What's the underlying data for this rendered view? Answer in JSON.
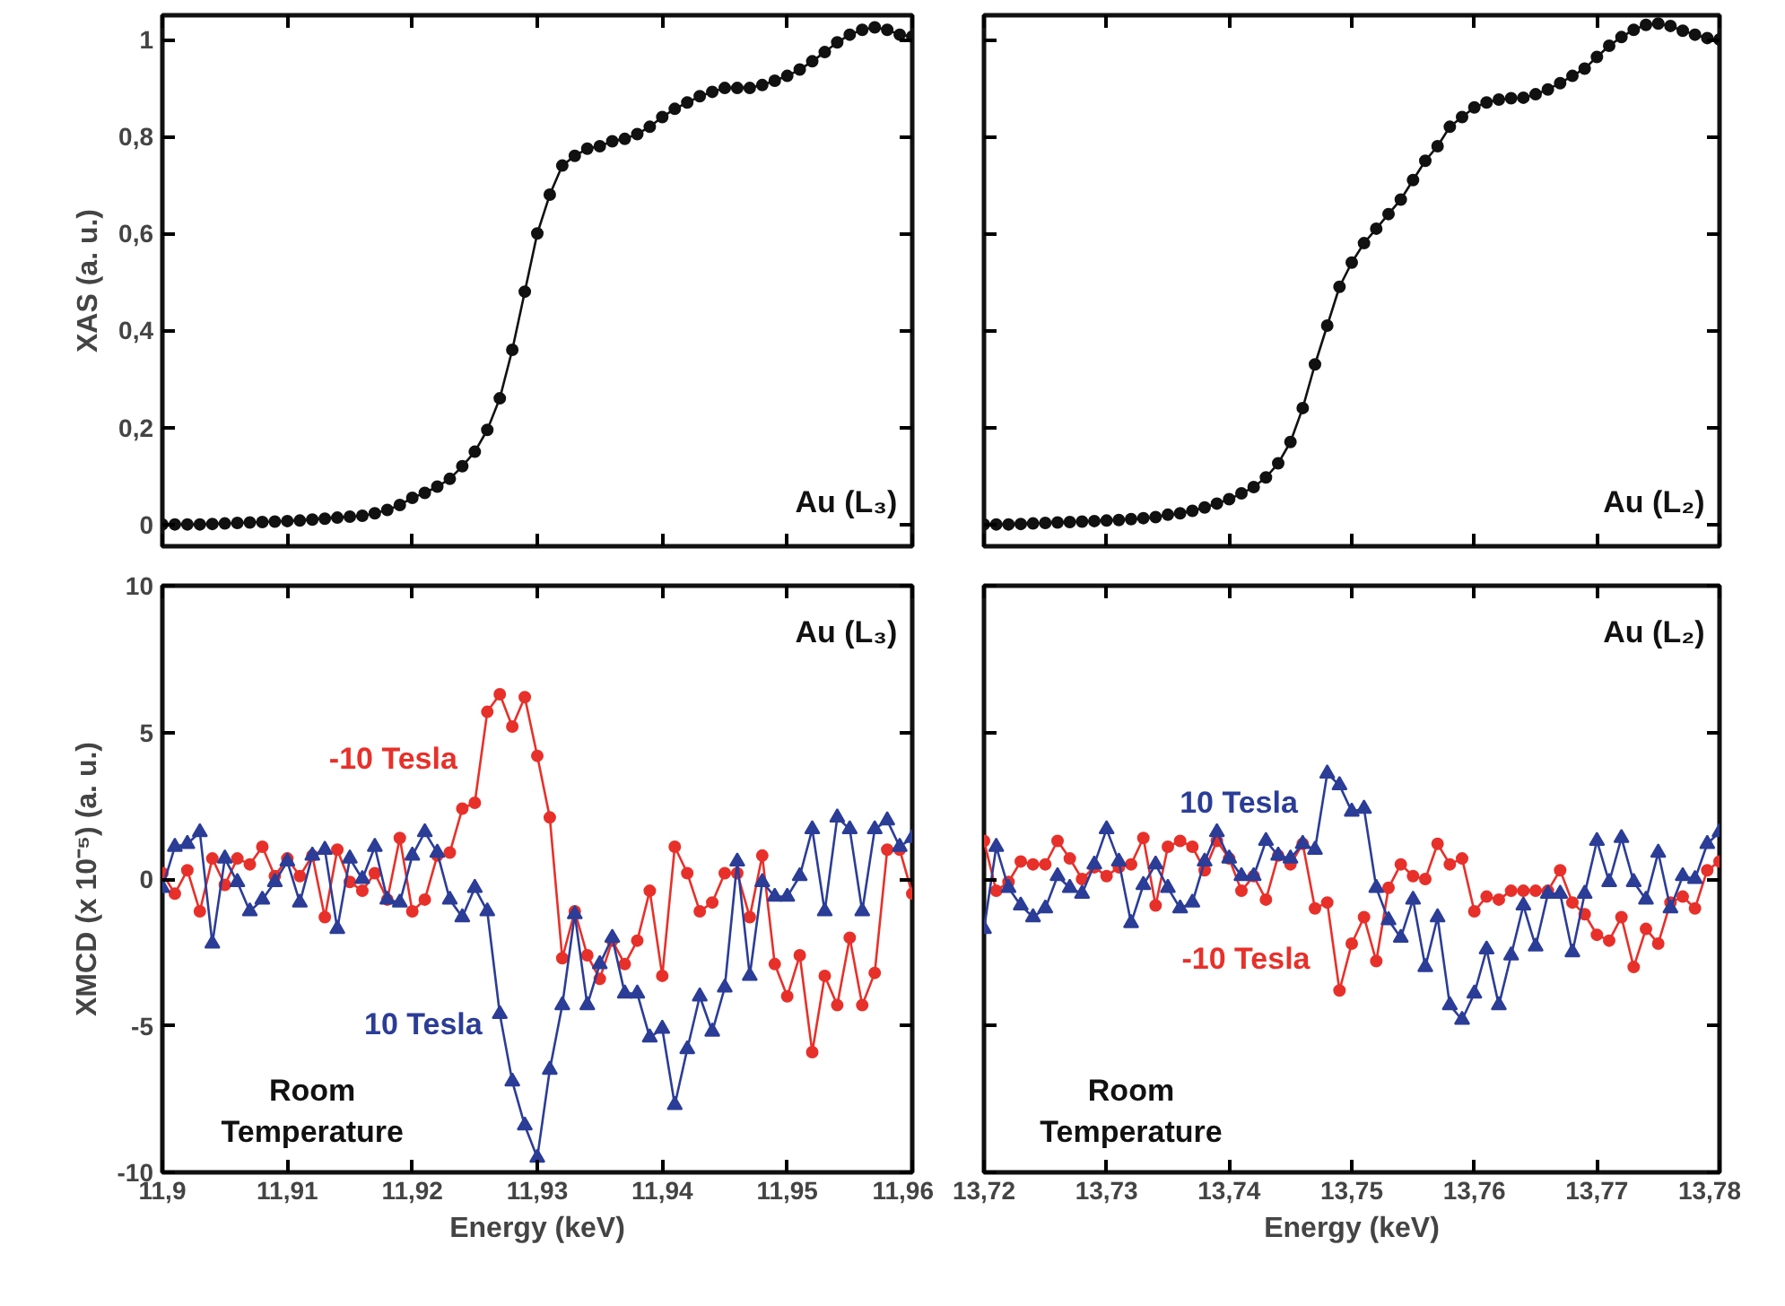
{
  "chart_data": [
    {
      "type": "line",
      "ylabel": "XAS (a. u.)",
      "annotations": [
        "Au (L₃)"
      ],
      "xlim": [
        11.9,
        11.96
      ],
      "ylim": [
        -0.045,
        1.05
      ],
      "tick_labels": "y",
      "grid": false,
      "marker": "circle",
      "line_style": "solid",
      "xticks": [
        11.9,
        11.91,
        11.92,
        11.93,
        11.94,
        11.95,
        11.96
      ],
      "yticks": [
        0,
        {
          "value": 0.2,
          "label": "0,2"
        },
        {
          "value": 0.4,
          "label": "0,4"
        },
        {
          "value": 0.6,
          "label": "0,6"
        },
        {
          "value": 0.8,
          "label": "0,8"
        },
        1
      ],
      "x": [
        11.9,
        11.901,
        11.902,
        11.903,
        11.904,
        11.905,
        11.906,
        11.907,
        11.908,
        11.909,
        11.91,
        11.911,
        11.912,
        11.913,
        11.914,
        11.915,
        11.916,
        11.917,
        11.918,
        11.919,
        11.92,
        11.921,
        11.922,
        11.923,
        11.924,
        11.925,
        11.926,
        11.927,
        11.928,
        11.929,
        11.93,
        11.931,
        11.932,
        11.933,
        11.934,
        11.935,
        11.936,
        11.937,
        11.938,
        11.939,
        11.94,
        11.941,
        11.942,
        11.943,
        11.944,
        11.945,
        11.946,
        11.947,
        11.948,
        11.949,
        11.95,
        11.951,
        11.952,
        11.953,
        11.954,
        11.955,
        11.956,
        11.957,
        11.958,
        11.959,
        11.96
      ],
      "series": [
        {
          "color": "#111111",
          "values": [
            0,
            0,
            0,
            0,
            0.001,
            0.002,
            0.003,
            0.004,
            0.005,
            0.006,
            0.007,
            0.008,
            0.01,
            0.012,
            0.014,
            0.016,
            0.018,
            0.023,
            0.03,
            0.04,
            0.055,
            0.065,
            0.078,
            0.094,
            0.12,
            0.15,
            0.195,
            0.26,
            0.36,
            0.48,
            0.6,
            0.68,
            0.74,
            0.76,
            0.775,
            0.78,
            0.79,
            0.795,
            0.805,
            0.82,
            0.84,
            0.857,
            0.87,
            0.883,
            0.892,
            0.9,
            0.9,
            0.9,
            0.906,
            0.915,
            0.925,
            0.938,
            0.955,
            0.974,
            0.994,
            1.01,
            1.02,
            1.025,
            1.02,
            1.01,
            1.006
          ]
        }
      ]
    },
    {
      "type": "line",
      "annotations": [
        "Au (L₂)"
      ],
      "xlim": [
        13.72,
        13.78
      ],
      "ylim": [
        -0.045,
        1.05
      ],
      "tick_labels": false,
      "grid": false,
      "marker": "circle",
      "line_style": "solid",
      "xticks": [
        13.72,
        13.73,
        13.74,
        13.75,
        13.76,
        13.77,
        13.78
      ],
      "yticks": [
        0,
        0.2,
        0.4,
        0.6,
        0.8,
        1
      ],
      "x": [
        13.72,
        13.721,
        13.722,
        13.723,
        13.724,
        13.725,
        13.726,
        13.727,
        13.728,
        13.729,
        13.73,
        13.731,
        13.732,
        13.733,
        13.734,
        13.735,
        13.736,
        13.737,
        13.738,
        13.739,
        13.74,
        13.741,
        13.742,
        13.743,
        13.744,
        13.745,
        13.746,
        13.747,
        13.748,
        13.749,
        13.75,
        13.751,
        13.752,
        13.753,
        13.754,
        13.755,
        13.756,
        13.757,
        13.758,
        13.759,
        13.76,
        13.761,
        13.762,
        13.763,
        13.764,
        13.765,
        13.766,
        13.767,
        13.768,
        13.769,
        13.77,
        13.771,
        13.772,
        13.773,
        13.774,
        13.775,
        13.776,
        13.777,
        13.778,
        13.779,
        13.78
      ],
      "series": [
        {
          "color": "#111111",
          "values": [
            0,
            0,
            0,
            0.001,
            0.002,
            0.003,
            0.004,
            0.005,
            0.006,
            0.007,
            0.008,
            0.009,
            0.011,
            0.013,
            0.015,
            0.02,
            0.023,
            0.028,
            0.035,
            0.043,
            0.052,
            0.064,
            0.077,
            0.097,
            0.126,
            0.17,
            0.24,
            0.33,
            0.41,
            0.49,
            0.54,
            0.58,
            0.61,
            0.64,
            0.67,
            0.71,
            0.75,
            0.78,
            0.82,
            0.84,
            0.86,
            0.87,
            0.876,
            0.879,
            0.88,
            0.887,
            0.897,
            0.91,
            0.925,
            0.94,
            0.964,
            0.987,
            1.005,
            1.02,
            1.03,
            1.033,
            1.028,
            1.018,
            1.01,
            1.003,
            1.0
          ]
        }
      ]
    },
    {
      "type": "line",
      "xlabel": "Energy (keV)",
      "ylabel": "XMCD (x 10⁻⁵) (a. u.)",
      "annotations": [
        "Au (L₃)",
        "Room Temperature"
      ],
      "xlim": [
        11.9,
        11.96
      ],
      "ylim": [
        -10,
        10
      ],
      "grid": false,
      "line_style": "solid",
      "xticks": [
        {
          "value": 11.9,
          "label": "11,9"
        },
        {
          "value": 11.91,
          "label": "11,91"
        },
        {
          "value": 11.92,
          "label": "11,92"
        },
        {
          "value": 11.93,
          "label": "11,93"
        },
        {
          "value": 11.94,
          "label": "11,94"
        },
        {
          "value": 11.95,
          "label": "11,95"
        },
        {
          "value": 11.96,
          "label": "11,96"
        }
      ],
      "yticks": [
        -10,
        -5,
        0,
        5,
        10
      ],
      "x": [
        11.9,
        11.901,
        11.902,
        11.903,
        11.904,
        11.905,
        11.906,
        11.907,
        11.908,
        11.909,
        11.91,
        11.911,
        11.912,
        11.913,
        11.914,
        11.915,
        11.916,
        11.917,
        11.918,
        11.919,
        11.92,
        11.921,
        11.922,
        11.923,
        11.924,
        11.925,
        11.926,
        11.927,
        11.928,
        11.929,
        11.93,
        11.931,
        11.932,
        11.933,
        11.934,
        11.935,
        11.936,
        11.937,
        11.938,
        11.939,
        11.94,
        11.941,
        11.942,
        11.943,
        11.944,
        11.945,
        11.946,
        11.947,
        11.948,
        11.949,
        11.95,
        11.951,
        11.952,
        11.953,
        11.954,
        11.955,
        11.956,
        11.957,
        11.958,
        11.959,
        11.96
      ],
      "series": [
        {
          "name": "-10 Tesla",
          "color": "#e8302a",
          "marker": "circle",
          "values": [
            0.2,
            -0.5,
            0.3,
            -1.1,
            0.7,
            -0.2,
            0.7,
            0.5,
            1.1,
            0.1,
            0.7,
            0.1,
            0.8,
            -1.3,
            1.0,
            -0.1,
            -0.4,
            0.2,
            -0.7,
            1.4,
            -1.1,
            -0.7,
            0.8,
            0.9,
            2.4,
            2.6,
            5.7,
            6.3,
            5.2,
            6.2,
            4.2,
            2.1,
            -2.7,
            -1.1,
            -2.6,
            -3.4,
            -2.1,
            -2.9,
            -2.1,
            -0.4,
            -3.3,
            1.1,
            0.2,
            -1.1,
            -0.8,
            0.2,
            0.2,
            -1.3,
            0.8,
            -2.9,
            -4.0,
            -2.6,
            -5.9,
            -3.3,
            -4.3,
            -2.0,
            -4.3,
            -3.2,
            1.0,
            1.0,
            -0.5
          ]
        },
        {
          "name": "10 Tesla",
          "color": "#2b3d97",
          "marker": "triangle",
          "values": [
            -0.3,
            1.1,
            1.2,
            1.6,
            -2.2,
            0.7,
            -0.1,
            -1.1,
            -0.7,
            -0.1,
            0.6,
            -0.8,
            0.8,
            1.0,
            -1.7,
            0.7,
            0.0,
            1.1,
            -0.7,
            -0.8,
            0.8,
            1.6,
            0.9,
            -0.7,
            -1.3,
            -0.3,
            -1.1,
            -4.6,
            -6.9,
            -8.4,
            -9.5,
            -6.5,
            -4.3,
            -1.2,
            -4.3,
            -2.9,
            -2.0,
            -3.9,
            -3.9,
            -5.4,
            -5.1,
            -7.7,
            -5.8,
            -4.0,
            -5.2,
            -3.7,
            0.6,
            -3.3,
            -0.1,
            -0.6,
            -0.6,
            0.1,
            1.7,
            -1.1,
            2.1,
            1.7,
            -1.1,
            1.7,
            2.0,
            1.1,
            1.4
          ]
        }
      ]
    },
    {
      "type": "line",
      "xlabel": "Energy (keV)",
      "annotations": [
        "Au (L₂)",
        "Room Temperature"
      ],
      "xlim": [
        13.72,
        13.78
      ],
      "ylim": [
        -10,
        10
      ],
      "tick_labels": "x",
      "grid": false,
      "line_style": "solid",
      "xticks": [
        {
          "value": 13.72,
          "label": "13,72"
        },
        {
          "value": 13.73,
          "label": "13,73"
        },
        {
          "value": 13.74,
          "label": "13,74"
        },
        {
          "value": 13.75,
          "label": "13,75"
        },
        {
          "value": 13.76,
          "label": "13,76"
        },
        {
          "value": 13.77,
          "label": "13,77"
        },
        {
          "value": 13.78,
          "label": "13,78"
        }
      ],
      "yticks": [
        -10,
        -5,
        0,
        5,
        10
      ],
      "x": [
        13.72,
        13.721,
        13.722,
        13.723,
        13.724,
        13.725,
        13.726,
        13.727,
        13.728,
        13.729,
        13.73,
        13.731,
        13.732,
        13.733,
        13.734,
        13.735,
        13.736,
        13.737,
        13.738,
        13.739,
        13.74,
        13.741,
        13.742,
        13.743,
        13.744,
        13.745,
        13.746,
        13.747,
        13.748,
        13.749,
        13.75,
        13.751,
        13.752,
        13.753,
        13.754,
        13.755,
        13.756,
        13.757,
        13.758,
        13.759,
        13.76,
        13.761,
        13.762,
        13.763,
        13.764,
        13.765,
        13.766,
        13.767,
        13.768,
        13.769,
        13.77,
        13.771,
        13.772,
        13.773,
        13.774,
        13.775,
        13.776,
        13.777,
        13.778,
        13.779,
        13.78
      ],
      "series": [
        {
          "name": "-10 Tesla",
          "color": "#e8302a",
          "marker": "circle",
          "values": [
            1.3,
            -0.4,
            -0.1,
            0.6,
            0.5,
            0.5,
            1.3,
            0.7,
            0.0,
            0.4,
            0.1,
            0.4,
            0.5,
            1.4,
            -0.9,
            1.1,
            1.3,
            1.1,
            0.3,
            1.3,
            0.7,
            -0.4,
            0.1,
            -0.7,
            0.8,
            0.5,
            1.2,
            -1.0,
            -0.8,
            -3.8,
            -2.2,
            -1.3,
            -2.8,
            -0.3,
            0.5,
            0.1,
            0.0,
            1.2,
            0.5,
            0.7,
            -1.1,
            -0.6,
            -0.7,
            -0.4,
            -0.4,
            -0.4,
            -0.4,
            0.3,
            -0.8,
            -1.2,
            -1.9,
            -2.1,
            -1.3,
            -3.0,
            -1.7,
            -2.2,
            -0.8,
            -0.6,
            -1.0,
            0.3,
            0.6
          ]
        },
        {
          "name": "10 Tesla",
          "color": "#2b3d97",
          "marker": "triangle",
          "values": [
            -1.7,
            1.1,
            -0.3,
            -0.9,
            -1.3,
            -1.0,
            0.1,
            -0.3,
            -0.5,
            0.5,
            1.7,
            0.6,
            -1.5,
            -0.2,
            0.5,
            -0.3,
            -1.0,
            -0.8,
            0.6,
            1.6,
            0.7,
            0.1,
            0.1,
            1.3,
            0.8,
            0.7,
            1.2,
            1.0,
            3.6,
            3.2,
            2.3,
            2.4,
            -0.3,
            -1.4,
            -2.0,
            -0.7,
            -3.0,
            -1.3,
            -4.3,
            -4.8,
            -3.9,
            -2.4,
            -4.3,
            -2.6,
            -0.9,
            -2.3,
            -0.5,
            -0.5,
            -2.5,
            -0.5,
            1.3,
            -0.1,
            1.4,
            -0.1,
            -0.7,
            0.9,
            -1.0,
            0.1,
            0.0,
            1.2,
            1.6
          ]
        }
      ]
    }
  ]
}
